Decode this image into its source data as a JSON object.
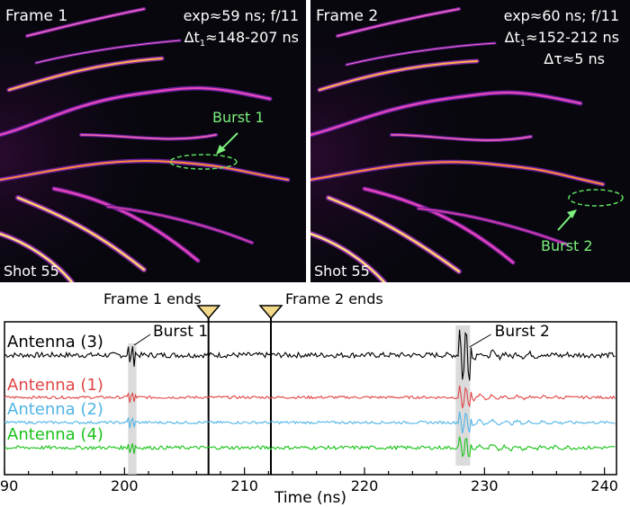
{
  "frame1": {
    "title": "Frame 1",
    "exposure": "exp≈59 ns; f/11",
    "timing": "Δt",
    "timing_sub": "1",
    "timing_value": "≈148-207 ns",
    "shot": "Shot 55",
    "burst_label": "Burst 1"
  },
  "frame2": {
    "title": "Frame 2",
    "exposure": "exp≈60 ns; f/11",
    "timing": "Δt",
    "timing_sub": "1",
    "timing_value": "≈152-212 ns",
    "delta_tau": "Δτ≈5 ns",
    "shot": "Shot 55",
    "burst_label": "Burst 2"
  },
  "markers": {
    "frame1_end_label": "Frame 1 ends",
    "frame1_end_time": 207,
    "frame2_end_label": "Frame 2 ends",
    "frame2_end_time": 212.2
  },
  "chart_data": {
    "type": "line",
    "xlabel": "Time (ns)",
    "xlim": [
      190,
      241
    ],
    "xticks": [
      190,
      200,
      210,
      220,
      230,
      240
    ],
    "series": [
      {
        "name": "Antenna (3)",
        "color": "#000000"
      },
      {
        "name": "Antenna (1)",
        "color": "#e04545"
      },
      {
        "name": "Antenna (2)",
        "color": "#4fb4e6"
      },
      {
        "name": "Antenna (4)",
        "color": "#19c219"
      }
    ],
    "annotations": [
      {
        "label": "Burst 1",
        "time": 200.5
      },
      {
        "label": "Burst 2",
        "time": 228
      }
    ]
  }
}
